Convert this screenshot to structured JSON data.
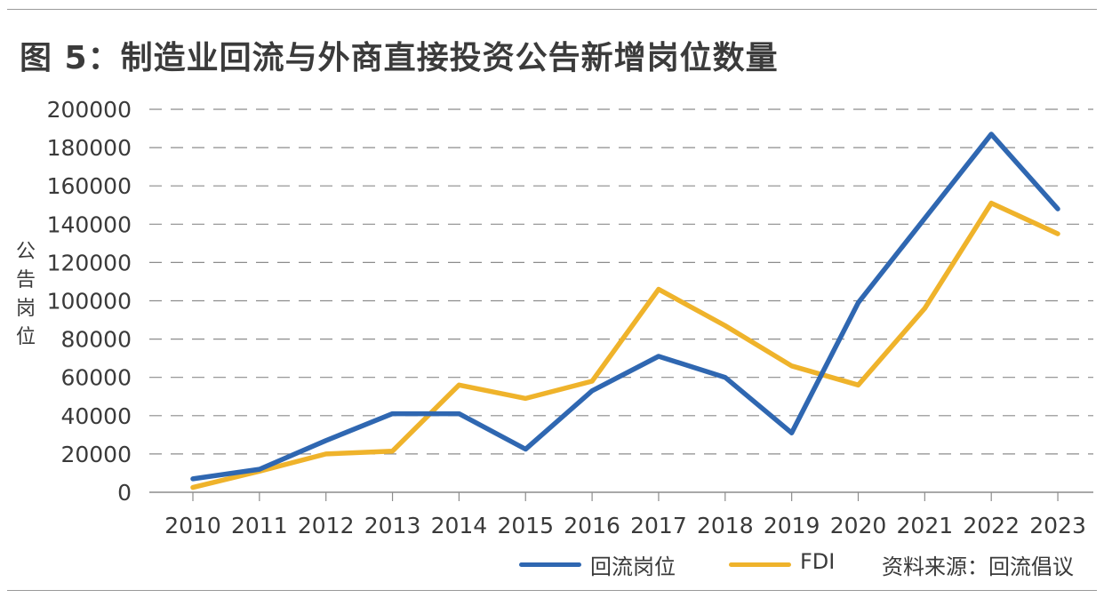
{
  "title": "图 5：制造业回流与外商直接投资公告新增岗位数量",
  "source": "资料来源：回流倡议",
  "y_axis_chars": [
    "公",
    "告",
    "岗",
    "位"
  ],
  "colors": {
    "reshoring": "#2f67b1",
    "fdi": "#efb32b",
    "grid": "#8c8c8c",
    "text": "#3a3a3a"
  },
  "chart_data": {
    "type": "line",
    "title": "图 5：制造业回流与外商直接投资公告新增岗位数量",
    "xlabel": "",
    "ylabel": "公告岗位",
    "ylim": [
      0,
      200000
    ],
    "yticks": [
      0,
      20000,
      40000,
      60000,
      80000,
      100000,
      120000,
      140000,
      160000,
      180000,
      200000
    ],
    "grid": true,
    "legend_position": "bottom",
    "categories": [
      "2010",
      "2011",
      "2012",
      "2013",
      "2014",
      "2015",
      "2016",
      "2017",
      "2018",
      "2019",
      "2020",
      "2021",
      "2022",
      "2023"
    ],
    "series": [
      {
        "name": "回流岗位",
        "color": "#2f67b1",
        "values": [
          7000,
          12000,
          27000,
          41000,
          41000,
          22500,
          53000,
          71000,
          60000,
          31000,
          99000,
          143000,
          187000,
          148000
        ]
      },
      {
        "name": "FDI",
        "color": "#efb32b",
        "values": [
          2500,
          11000,
          20000,
          21500,
          56000,
          49000,
          58000,
          106000,
          87000,
          66000,
          56000,
          96000,
          151000,
          135000
        ]
      }
    ]
  }
}
